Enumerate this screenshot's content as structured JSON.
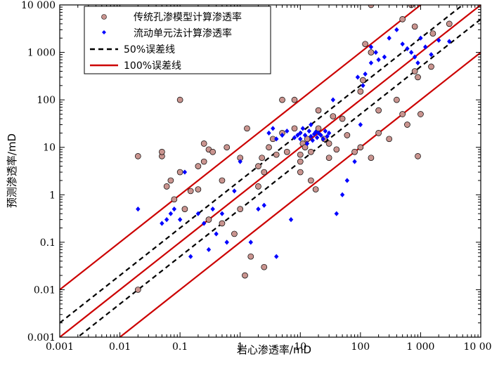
{
  "chart_data": {
    "type": "scatter",
    "xlabel": "岩心渗透率/mD",
    "ylabel": "预测渗透率/mD",
    "xscale": "log",
    "yscale": "log",
    "xlim": [
      0.001,
      10000
    ],
    "ylim": [
      0.001,
      10000
    ],
    "x_ticks": [
      0.001,
      0.01,
      0.1,
      1,
      10,
      100,
      1000,
      10000
    ],
    "y_ticks": [
      0.001,
      0.01,
      0.1,
      1,
      10,
      100,
      1000,
      10000
    ],
    "x_tick_labels": [
      "0.001",
      "0.01",
      "0.1",
      "1",
      "10",
      "100",
      "1 000",
      "10 000"
    ],
    "y_tick_labels": [
      "0.001",
      "0.01",
      "0.1",
      "1",
      "10",
      "100",
      "1 000",
      "10 000"
    ],
    "legend_position": "top-left",
    "colors": {
      "circle_fill": "#c9948f",
      "diamond_fill": "#0000ff",
      "error100_line": "#cc0000",
      "error50_line": "#000000"
    },
    "series": [
      {
        "name": "传统孔渗模型计算渗透率",
        "marker": "circle",
        "points": [
          [
            0.02,
            0.01
          ],
          [
            0.02,
            6.5
          ],
          [
            0.05,
            6.5
          ],
          [
            0.05,
            8
          ],
          [
            0.06,
            1.5
          ],
          [
            0.07,
            2
          ],
          [
            0.08,
            0.8
          ],
          [
            0.1,
            100
          ],
          [
            0.1,
            3
          ],
          [
            0.12,
            0.5
          ],
          [
            0.15,
            1.2
          ],
          [
            0.2,
            4
          ],
          [
            0.2,
            1.3
          ],
          [
            0.25,
            12
          ],
          [
            0.25,
            5
          ],
          [
            0.3,
            9
          ],
          [
            0.3,
            0.3
          ],
          [
            0.35,
            8
          ],
          [
            0.5,
            0.25
          ],
          [
            0.5,
            2
          ],
          [
            0.6,
            10
          ],
          [
            0.8,
            0.15
          ],
          [
            1,
            6
          ],
          [
            1,
            0.5
          ],
          [
            1.2,
            0.02
          ],
          [
            1.3,
            25
          ],
          [
            1.5,
            0.05
          ],
          [
            2,
            4
          ],
          [
            2,
            1.5
          ],
          [
            2.3,
            6
          ],
          [
            2.5,
            3
          ],
          [
            2.5,
            0.03
          ],
          [
            3,
            10
          ],
          [
            3.5,
            15
          ],
          [
            4,
            7
          ],
          [
            5,
            20
          ],
          [
            5,
            100
          ],
          [
            6,
            8
          ],
          [
            8,
            100
          ],
          [
            8,
            25
          ],
          [
            10,
            5
          ],
          [
            10,
            3
          ],
          [
            10,
            7
          ],
          [
            11,
            12
          ],
          [
            12,
            10
          ],
          [
            13,
            15
          ],
          [
            15,
            8
          ],
          [
            15,
            2
          ],
          [
            18,
            1.3
          ],
          [
            20,
            25
          ],
          [
            20,
            60
          ],
          [
            25,
            15
          ],
          [
            30,
            6
          ],
          [
            30,
            12
          ],
          [
            35,
            45
          ],
          [
            40,
            9
          ],
          [
            50,
            40
          ],
          [
            60,
            18
          ],
          [
            80,
            8
          ],
          [
            100,
            10
          ],
          [
            100,
            150
          ],
          [
            110,
            260
          ],
          [
            120,
            1500
          ],
          [
            150,
            6
          ],
          [
            150,
            10000
          ],
          [
            150,
            1000
          ],
          [
            200,
            60
          ],
          [
            200,
            20
          ],
          [
            300,
            15
          ],
          [
            400,
            100
          ],
          [
            500,
            50
          ],
          [
            500,
            5000
          ],
          [
            600,
            30
          ],
          [
            700,
            10000
          ],
          [
            800,
            3500
          ],
          [
            800,
            400
          ],
          [
            900,
            300
          ],
          [
            900,
            6.5
          ],
          [
            1000,
            50
          ],
          [
            1500,
            500
          ],
          [
            1600,
            2500
          ],
          [
            3000,
            4000
          ]
        ]
      },
      {
        "name": "流动单元法计算渗透率",
        "marker": "diamond",
        "points": [
          [
            0.02,
            0.5
          ],
          [
            0.05,
            0.25
          ],
          [
            0.06,
            0.3
          ],
          [
            0.07,
            0.4
          ],
          [
            0.08,
            0.5
          ],
          [
            0.1,
            0.3
          ],
          [
            0.12,
            3
          ],
          [
            0.15,
            0.05
          ],
          [
            0.2,
            0.4
          ],
          [
            0.25,
            0.25
          ],
          [
            0.3,
            0.07
          ],
          [
            0.35,
            0.5
          ],
          [
            0.4,
            0.15
          ],
          [
            0.5,
            0.4
          ],
          [
            0.6,
            0.1
          ],
          [
            0.8,
            1.2
          ],
          [
            1,
            5
          ],
          [
            1.5,
            0.1
          ],
          [
            2,
            0.5
          ],
          [
            2.5,
            0.6
          ],
          [
            3,
            20
          ],
          [
            3.5,
            25
          ],
          [
            4,
            15
          ],
          [
            4,
            0.05
          ],
          [
            5,
            18
          ],
          [
            6,
            22
          ],
          [
            7,
            0.3
          ],
          [
            8,
            16
          ],
          [
            9,
            18
          ],
          [
            10,
            20
          ],
          [
            10,
            15
          ],
          [
            11,
            25
          ],
          [
            12,
            18
          ],
          [
            13,
            12
          ],
          [
            14,
            22
          ],
          [
            15,
            30
          ],
          [
            15,
            17
          ],
          [
            16,
            14
          ],
          [
            17,
            19
          ],
          [
            18,
            21
          ],
          [
            19,
            16
          ],
          [
            20,
            20
          ],
          [
            22,
            18
          ],
          [
            24,
            15
          ],
          [
            26,
            22
          ],
          [
            28,
            17
          ],
          [
            30,
            20
          ],
          [
            35,
            100
          ],
          [
            40,
            0.4
          ],
          [
            50,
            1
          ],
          [
            60,
            2
          ],
          [
            80,
            5
          ],
          [
            90,
            300
          ],
          [
            100,
            30
          ],
          [
            110,
            200
          ],
          [
            120,
            350
          ],
          [
            150,
            600
          ],
          [
            150,
            1300
          ],
          [
            180,
            1000
          ],
          [
            200,
            700
          ],
          [
            250,
            800
          ],
          [
            300,
            2000
          ],
          [
            400,
            3000
          ],
          [
            500,
            1500
          ],
          [
            600,
            1200
          ],
          [
            700,
            1000
          ],
          [
            800,
            800
          ],
          [
            900,
            600
          ],
          [
            1000,
            2000
          ],
          [
            1200,
            1300
          ],
          [
            1500,
            900
          ],
          [
            2000,
            1800
          ],
          [
            3000,
            1700
          ]
        ]
      }
    ],
    "reference_lines": [
      {
        "name": "50%误差线",
        "factor": 2,
        "style": "dashed",
        "color": "#000000"
      },
      {
        "name": "50%误差线",
        "factor": 0.5,
        "style": "dashed",
        "color": "#000000"
      },
      {
        "name": "100%误差线",
        "factor": 10,
        "style": "solid",
        "color": "#cc0000"
      },
      {
        "name": "100%误差线",
        "factor": 1,
        "style": "solid",
        "color": "#cc0000"
      },
      {
        "name": "100%误差线",
        "factor": 0.1,
        "style": "solid",
        "color": "#cc0000"
      }
    ],
    "legend": [
      {
        "label": "传统孔渗模型计算渗透率",
        "symbol": "circle"
      },
      {
        "label": "流动单元法计算渗透率",
        "symbol": "diamond"
      },
      {
        "label": "50%误差线",
        "symbol": "dashed-line"
      },
      {
        "label": "100%误差线",
        "symbol": "solid-line"
      }
    ]
  }
}
